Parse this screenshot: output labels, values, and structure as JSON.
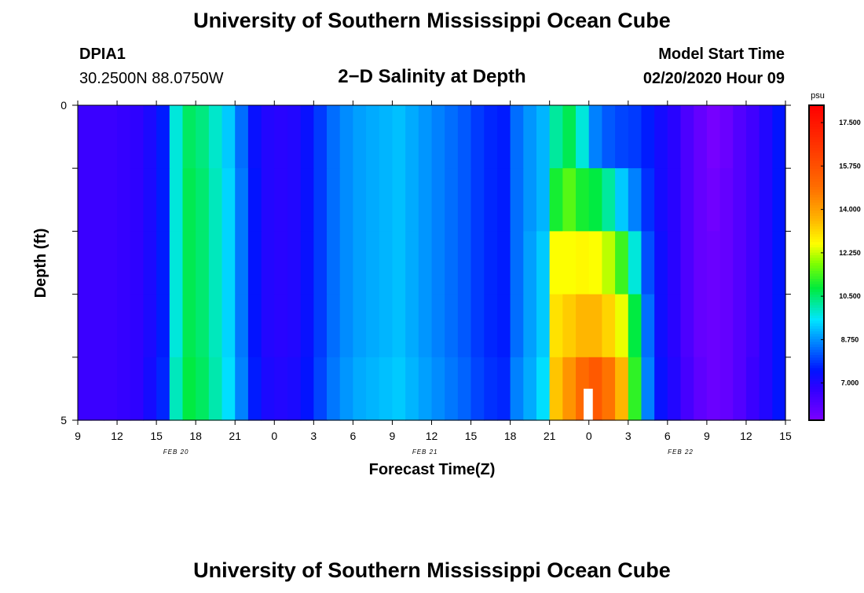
{
  "header": {
    "title": "University of Southern Mississippi Ocean Cube",
    "footer_title": "University of Southern Mississippi Ocean Cube",
    "station_id": "DPIA1",
    "station_coords": "30.2500N 88.0750W",
    "plot_title": "2−D Salinity at Depth",
    "model_start_label": "Model Start Time",
    "model_start_value": "02/20/2020 Hour 09"
  },
  "chart_data": {
    "type": "heatmap",
    "title": "2-D Salinity at Depth",
    "xlabel": "Forecast Time(Z)",
    "ylabel": "Depth (ft)",
    "y_tick_labels": [
      "0",
      "5"
    ],
    "ylim": [
      0,
      5
    ],
    "x_start_hour_offset": 0,
    "x_end_hour_offset": 54,
    "x_ticks": [
      {
        "h": 0,
        "label": "9"
      },
      {
        "h": 3,
        "label": "12"
      },
      {
        "h": 6,
        "label": "15"
      },
      {
        "h": 9,
        "label": "18"
      },
      {
        "h": 12,
        "label": "21"
      },
      {
        "h": 15,
        "label": "0"
      },
      {
        "h": 18,
        "label": "3"
      },
      {
        "h": 21,
        "label": "6"
      },
      {
        "h": 24,
        "label": "9"
      },
      {
        "h": 27,
        "label": "12"
      },
      {
        "h": 30,
        "label": "15"
      },
      {
        "h": 33,
        "label": "18"
      },
      {
        "h": 36,
        "label": "21"
      },
      {
        "h": 39,
        "label": "0"
      },
      {
        "h": 42,
        "label": "3"
      },
      {
        "h": 45,
        "label": "6"
      },
      {
        "h": 48,
        "label": "9"
      },
      {
        "h": 51,
        "label": "12"
      },
      {
        "h": 54,
        "label": "15"
      }
    ],
    "date_labels": [
      {
        "h": 7.5,
        "label": "FEB 20"
      },
      {
        "h": 26.5,
        "label": "FEB 21"
      },
      {
        "h": 46,
        "label": "FEB 22"
      }
    ],
    "colorbar": {
      "unit": "psu",
      "range": [
        5.5,
        18.2
      ],
      "tick_labels": [
        "7.000",
        "8.750",
        "10.500",
        "12.250",
        "14.000",
        "15.750",
        "17.500"
      ],
      "tick_values": [
        7.0,
        8.75,
        10.5,
        12.25,
        14.0,
        15.75,
        17.5
      ]
    },
    "depth_levels": 5,
    "hours": [
      0,
      1,
      2,
      3,
      4,
      5,
      6,
      7,
      8,
      9,
      10,
      11,
      12,
      13,
      14,
      15,
      16,
      17,
      18,
      19,
      20,
      21,
      22,
      23,
      24,
      25,
      26,
      27,
      28,
      29,
      30,
      31,
      32,
      33,
      34,
      35,
      36,
      37,
      38,
      39,
      40,
      41,
      42,
      43,
      44,
      45,
      46,
      47,
      48,
      49,
      50,
      51,
      52,
      53
    ],
    "salinity_rows": [
      [
        6.6,
        6.6,
        6.6,
        6.7,
        6.8,
        7.1,
        7.6,
        9.8,
        10.6,
        10.4,
        9.9,
        9.3,
        8.4,
        7.4,
        7.0,
        6.9,
        7.0,
        7.4,
        7.9,
        8.4,
        8.7,
        8.9,
        9.0,
        9.1,
        9.2,
        9.0,
        8.8,
        8.6,
        8.4,
        8.2,
        7.9,
        7.7,
        7.6,
        8.4,
        8.8,
        9.1,
        10.2,
        10.7,
        9.8,
        8.6,
        8.2,
        8.0,
        7.9,
        7.6,
        7.2,
        6.9,
        6.3,
        5.9,
        5.6,
        5.8,
        6.2,
        6.5,
        7.0,
        7.5
      ],
      [
        6.6,
        6.6,
        6.6,
        6.7,
        6.8,
        7.1,
        7.6,
        9.8,
        10.7,
        10.5,
        10.0,
        9.4,
        8.5,
        7.5,
        7.0,
        6.9,
        7.0,
        7.4,
        7.9,
        8.4,
        8.7,
        8.9,
        9.0,
        9.1,
        9.2,
        9.0,
        8.8,
        8.6,
        8.4,
        8.2,
        7.9,
        7.7,
        7.6,
        8.4,
        8.8,
        9.1,
        11.0,
        11.5,
        11.0,
        10.8,
        10.2,
        9.3,
        8.6,
        7.8,
        7.2,
        6.9,
        6.3,
        5.9,
        5.7,
        5.9,
        6.2,
        6.5,
        7.0,
        7.5
      ],
      [
        6.6,
        6.6,
        6.6,
        6.7,
        6.8,
        7.1,
        7.6,
        9.8,
        10.7,
        10.5,
        10.0,
        9.4,
        8.5,
        7.5,
        7.0,
        6.9,
        7.0,
        7.4,
        7.9,
        8.4,
        8.7,
        8.9,
        9.0,
        9.1,
        9.2,
        9.0,
        8.8,
        8.6,
        8.4,
        8.2,
        7.9,
        7.7,
        7.6,
        8.4,
        8.9,
        9.3,
        12.6,
        12.6,
        12.7,
        12.6,
        12.2,
        11.3,
        9.8,
        8.1,
        7.3,
        6.9,
        6.3,
        5.9,
        5.8,
        5.9,
        6.2,
        6.5,
        7.0,
        7.5
      ],
      [
        6.6,
        6.6,
        6.6,
        6.7,
        6.8,
        7.1,
        7.6,
        9.8,
        10.7,
        10.5,
        10.0,
        9.4,
        8.5,
        7.5,
        7.0,
        6.9,
        7.0,
        7.4,
        7.9,
        8.4,
        8.7,
        8.9,
        9.0,
        9.1,
        9.2,
        9.0,
        8.8,
        8.6,
        8.4,
        8.2,
        7.9,
        7.7,
        7.6,
        8.4,
        8.9,
        9.3,
        13.0,
        13.3,
        13.6,
        13.6,
        13.2,
        12.5,
        10.8,
        8.4,
        7.3,
        6.9,
        6.3,
        5.9,
        5.8,
        5.9,
        6.2,
        6.5,
        7.0,
        7.5
      ],
      [
        6.6,
        6.6,
        6.6,
        6.7,
        6.8,
        7.2,
        7.7,
        10.0,
        10.8,
        10.6,
        10.1,
        9.5,
        8.6,
        7.6,
        7.1,
        7.0,
        7.1,
        7.5,
        8.0,
        8.5,
        8.8,
        9.0,
        9.1,
        9.2,
        9.3,
        9.1,
        8.9,
        8.7,
        8.5,
        8.3,
        8.0,
        7.8,
        7.7,
        8.6,
        9.0,
        9.5,
        13.4,
        14.2,
        15.0,
        15.5,
        14.8,
        13.6,
        11.2,
        8.6,
        7.4,
        7.0,
        6.4,
        6.0,
        5.8,
        5.9,
        6.2,
        6.6,
        7.0,
        7.5
      ]
    ],
    "missing_cell": {
      "hour_start": 38.6,
      "hour_end": 39.3,
      "depth_start": 4.5,
      "depth_end": 5.0
    }
  },
  "colors": {
    "frame": "#000000",
    "missing": "#ffffff"
  }
}
